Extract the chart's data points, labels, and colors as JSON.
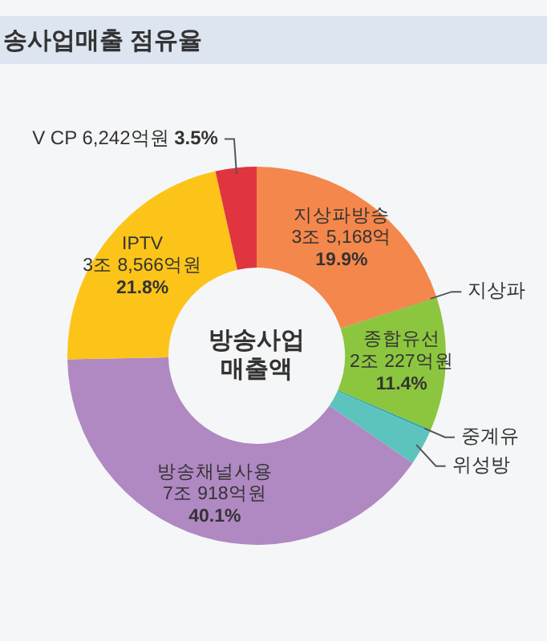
{
  "chart_data": {
    "type": "donut",
    "title": "송사업매출 점유율",
    "categories": [
      "지상파방송",
      "지상파",
      "종합유선",
      "중계유",
      "위성방",
      "방송채널사용",
      "IPTV",
      "V CP"
    ],
    "values": [
      19.9,
      0.1,
      11.4,
      0.2,
      3.0,
      40.1,
      21.8,
      3.5
    ],
    "colors": [
      "#f4874b",
      "#e8703a",
      "#8cc63f",
      "#3aa9a4",
      "#5cc4bd",
      "#b088c2",
      "#fcc419",
      "#e0353f"
    ],
    "value_labels": [
      "3조 5,168억\n19.9%",
      null,
      "2조 227억원\n11.4%",
      null,
      null,
      "7조 918억원\n40.1%",
      "3조 8,566억원\n21.8%",
      "6,242억원 3.5%"
    ],
    "annotations": [
      "방송사업\n매출액"
    ]
  }
}
